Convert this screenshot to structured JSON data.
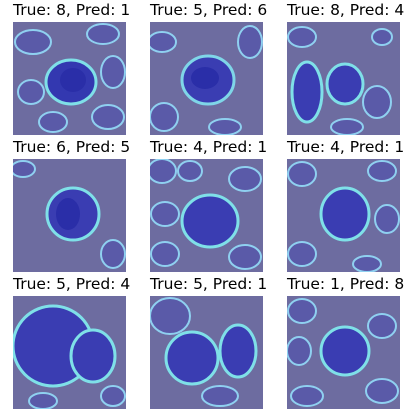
{
  "panels": [
    {
      "true": "8",
      "pred": "1",
      "label": "True: 8, Pred: 1"
    },
    {
      "true": "5",
      "pred": "6",
      "label": "True: 5, Pred: 6"
    },
    {
      "true": "8",
      "pred": "4",
      "label": "True: 8, Pred: 4"
    },
    {
      "true": "6",
      "pred": "5",
      "label": "True: 6, Pred: 5"
    },
    {
      "true": "4",
      "pred": "1",
      "label": "True: 4, Pred: 1"
    },
    {
      "true": "4",
      "pred": "1",
      "label": "True: 4, Pred: 1"
    },
    {
      "true": "5",
      "pred": "4",
      "label": "True: 5, Pred: 4"
    },
    {
      "true": "5",
      "pred": "1",
      "label": "True: 5, Pred: 1"
    },
    {
      "true": "1",
      "pred": "8",
      "label": "True: 1, Pred: 8"
    }
  ],
  "colors": {
    "background": "#6b6aa0",
    "cell": "#3a3fb0",
    "highlight": "#7fd6e8"
  }
}
